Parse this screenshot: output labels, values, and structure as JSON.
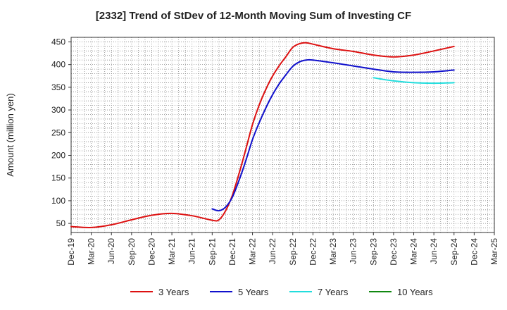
{
  "chart_data": {
    "type": "line",
    "title": "[2332]  Trend of StDev of 12-Month Moving Sum of Investing CF",
    "ylabel": "Amount (million yen)",
    "xlabel": "",
    "ylim": [
      30,
      460
    ],
    "yticks": [
      50,
      100,
      150,
      200,
      250,
      300,
      350,
      400,
      450
    ],
    "x_start": "Dec-19",
    "x_end": "Mar-25",
    "xtick_labels": [
      "Dec-19",
      "Mar-20",
      "Jun-20",
      "Sep-20",
      "Dec-20",
      "Mar-21",
      "Jun-21",
      "Sep-21",
      "Dec-21",
      "Mar-22",
      "Jun-22",
      "Sep-22",
      "Dec-22",
      "Mar-23",
      "Jun-23",
      "Sep-23",
      "Dec-23",
      "Mar-24",
      "Jun-24",
      "Sep-24",
      "Dec-24",
      "Mar-25"
    ],
    "grid": true,
    "legend_position": "bottom",
    "series": [
      {
        "name": "3 Years",
        "color": "#dd1111",
        "points": [
          [
            "Dec-19",
            43
          ],
          [
            "Mar-20",
            41
          ],
          [
            "Jun-20",
            47
          ],
          [
            "Sep-20",
            58
          ],
          [
            "Dec-20",
            68
          ],
          [
            "Mar-21",
            72
          ],
          [
            "Jun-21",
            67
          ],
          [
            "Sep-21",
            57
          ],
          [
            "Oct-21",
            58
          ],
          [
            "Nov-21",
            78
          ],
          [
            "Dec-21",
            112
          ],
          [
            "Jan-22",
            160
          ],
          [
            "Feb-22",
            213
          ],
          [
            "Mar-22",
            268
          ],
          [
            "Apr-22",
            311
          ],
          [
            "May-22",
            346
          ],
          [
            "Jun-22",
            375
          ],
          [
            "Jul-22",
            398
          ],
          [
            "Aug-22",
            418
          ],
          [
            "Sep-22",
            438
          ],
          [
            "Oct-22",
            446
          ],
          [
            "Nov-22",
            448
          ],
          [
            "Dec-22",
            445
          ],
          [
            "Mar-23",
            435
          ],
          [
            "Jun-23",
            429
          ],
          [
            "Sep-23",
            421
          ],
          [
            "Dec-23",
            417
          ],
          [
            "Mar-24",
            421
          ],
          [
            "Jun-24",
            430
          ],
          [
            "Sep-24",
            440
          ]
        ]
      },
      {
        "name": "5 Years",
        "color": "#1111cc",
        "points": [
          [
            "Sep-21",
            82
          ],
          [
            "Oct-21",
            78
          ],
          [
            "Nov-21",
            86
          ],
          [
            "Dec-21",
            108
          ],
          [
            "Jan-22",
            145
          ],
          [
            "Feb-22",
            188
          ],
          [
            "Mar-22",
            235
          ],
          [
            "Apr-22",
            272
          ],
          [
            "May-22",
            305
          ],
          [
            "Jun-22",
            334
          ],
          [
            "Jul-22",
            358
          ],
          [
            "Aug-22",
            378
          ],
          [
            "Sep-22",
            396
          ],
          [
            "Oct-22",
            406
          ],
          [
            "Nov-22",
            410
          ],
          [
            "Dec-22",
            410
          ],
          [
            "Mar-23",
            404
          ],
          [
            "Jun-23",
            397
          ],
          [
            "Sep-23",
            390
          ],
          [
            "Dec-23",
            384
          ],
          [
            "Mar-24",
            383
          ],
          [
            "Jun-24",
            384
          ],
          [
            "Sep-24",
            388
          ]
        ]
      },
      {
        "name": "7 Years",
        "color": "#22dddd",
        "points": [
          [
            "Sep-23",
            371
          ],
          [
            "Dec-23",
            364
          ],
          [
            "Mar-24",
            360
          ],
          [
            "Jun-24",
            359
          ],
          [
            "Sep-24",
            360
          ]
        ]
      },
      {
        "name": "10 Years",
        "color": "#118811",
        "points": []
      }
    ]
  }
}
